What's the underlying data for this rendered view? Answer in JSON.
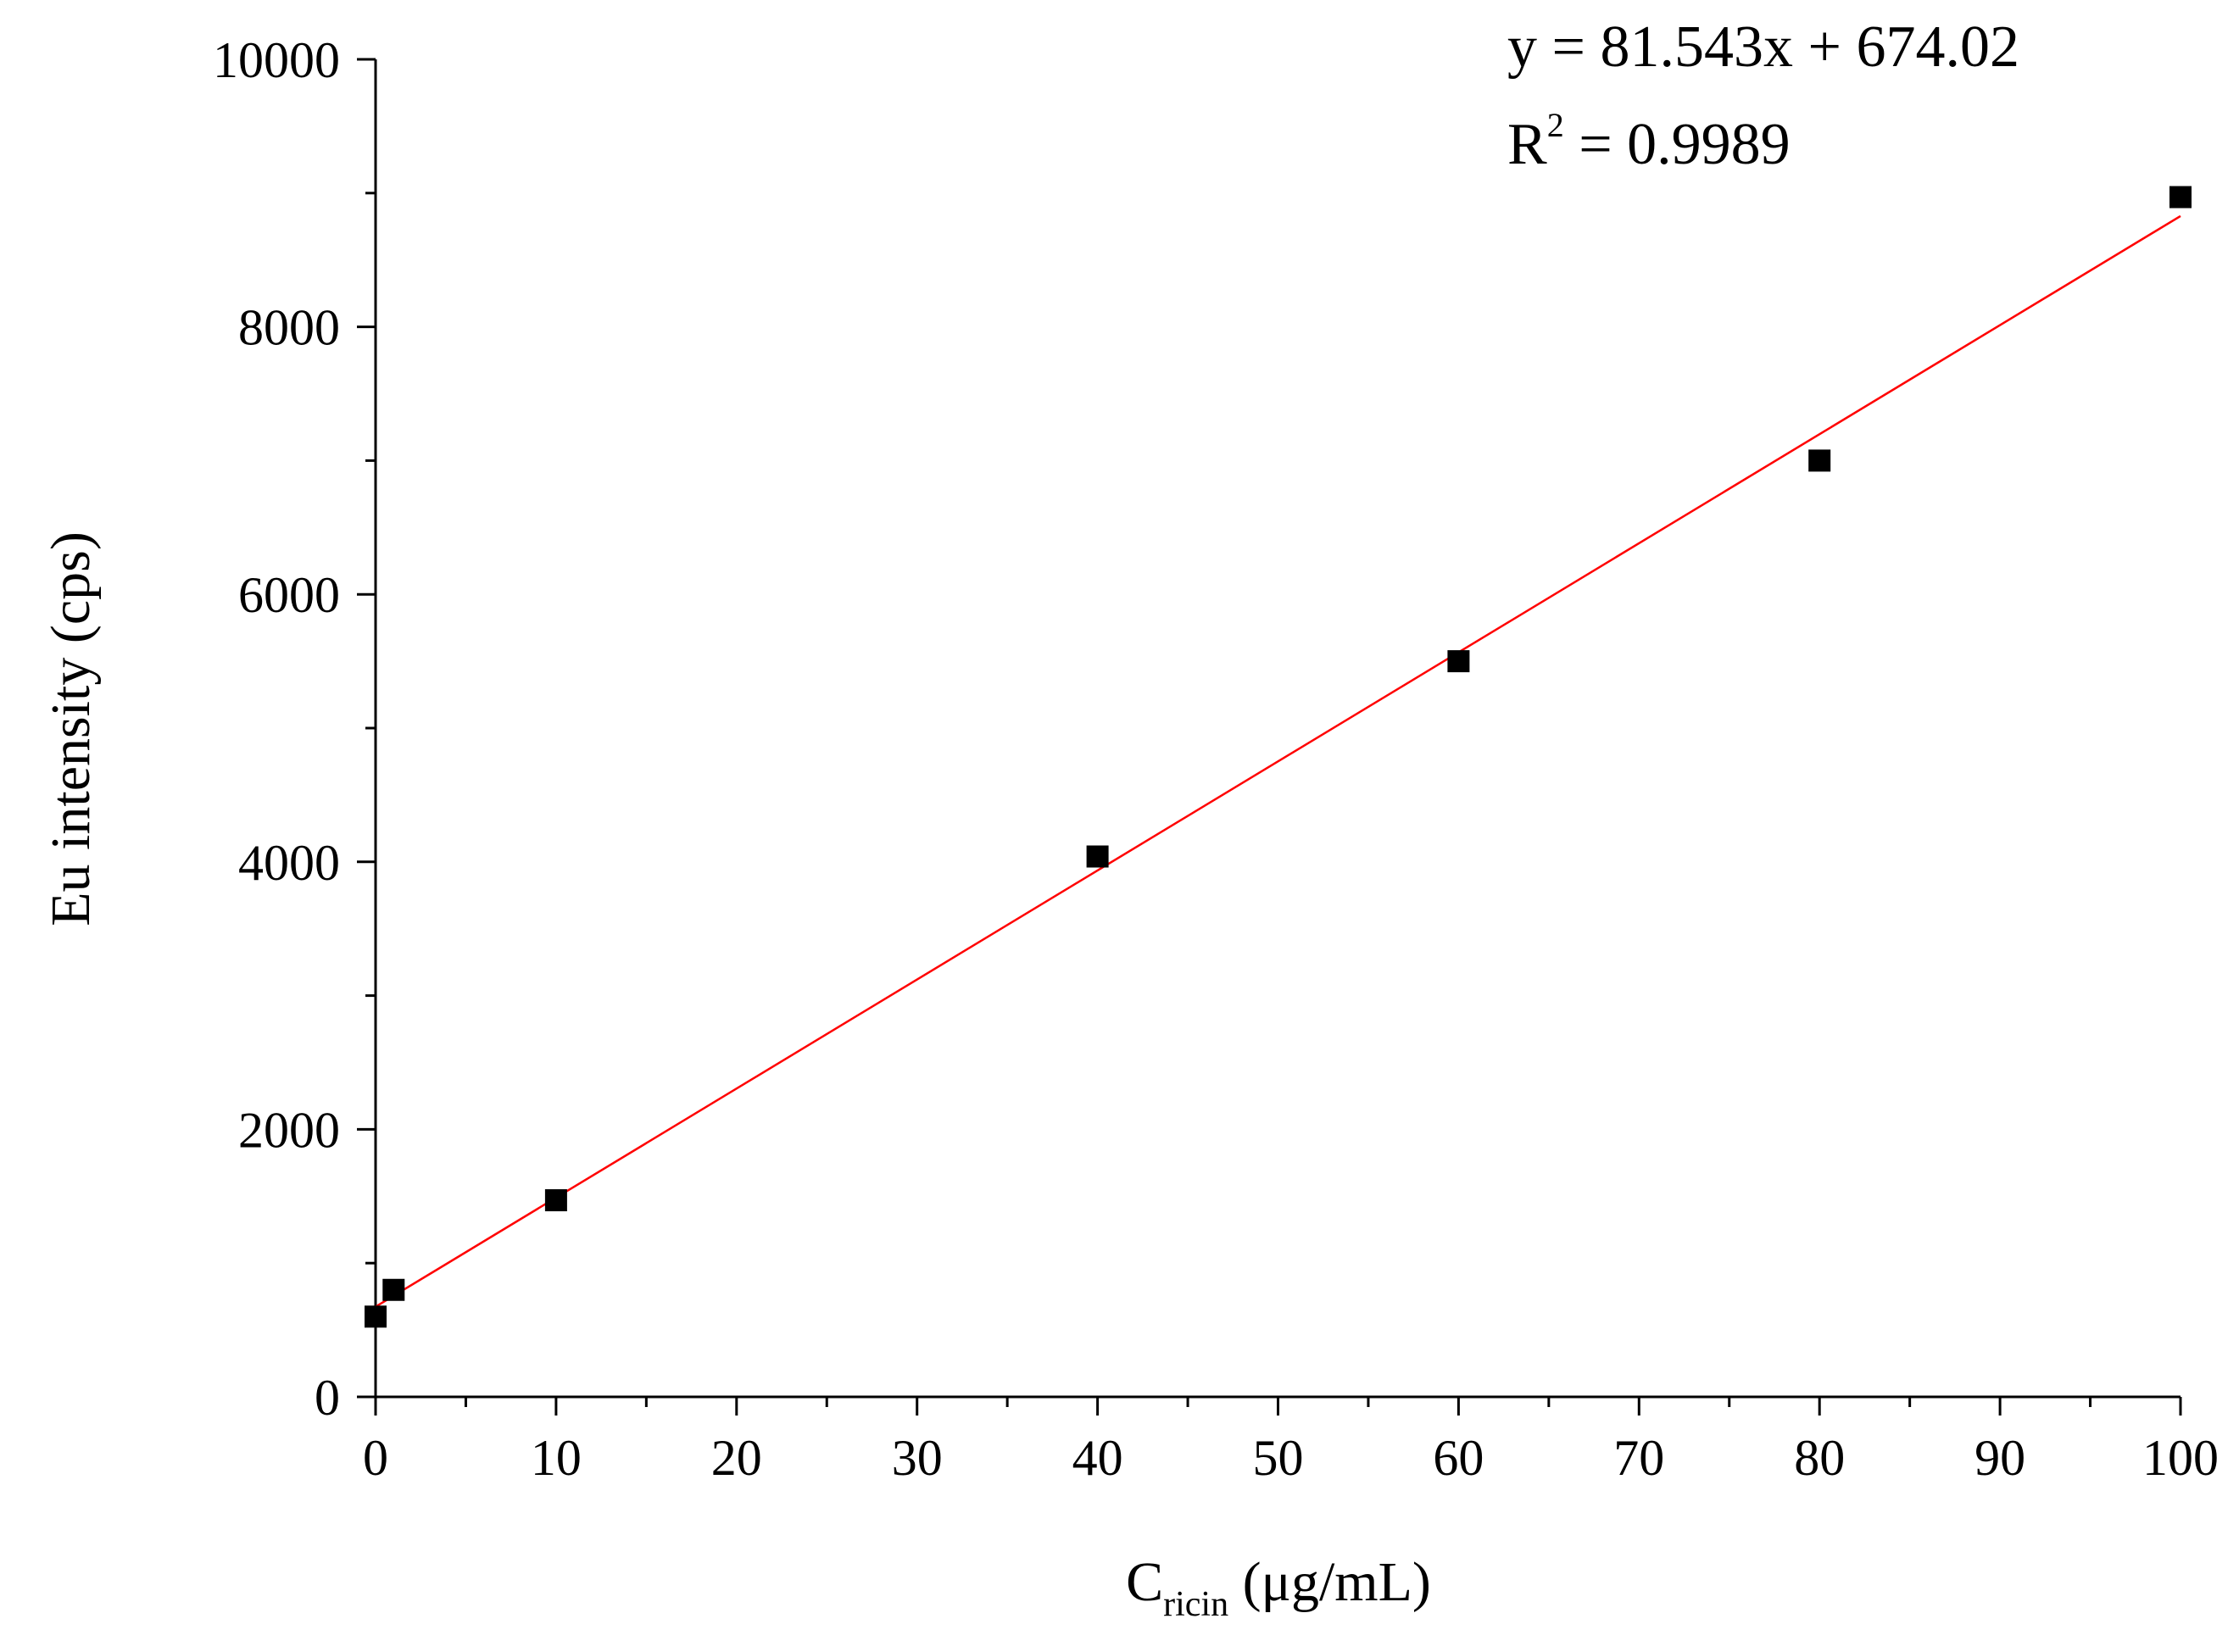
{
  "chart_data": {
    "type": "scatter",
    "title": "",
    "xlabel": "C",
    "xlabel_subscript": "ricin",
    "xlabel_unit": " (μg/mL)",
    "ylabel": "Eu intensity (cps)",
    "xlim": [
      0,
      100
    ],
    "ylim": [
      0,
      10000
    ],
    "x_ticks": [
      0,
      10,
      20,
      30,
      40,
      50,
      60,
      70,
      80,
      90,
      100
    ],
    "y_ticks": [
      0,
      2000,
      4000,
      6000,
      8000,
      10000
    ],
    "grid": false,
    "legend": "none",
    "series": [
      {
        "x": [
          0,
          1,
          10,
          40,
          60,
          80,
          100
        ],
        "y": [
          600,
          800,
          1470,
          4040,
          5500,
          7000,
          8970
        ],
        "color": "#000000",
        "marker": "square"
      }
    ],
    "fit": {
      "slope": 81.543,
      "intercept": 674.02,
      "color": "#ff0000"
    },
    "annotations": {
      "equation": "y = 81.543x + 674.02",
      "r2_base": "R",
      "r2_sup": "2",
      "r2_rest": " = 0.9989"
    }
  }
}
